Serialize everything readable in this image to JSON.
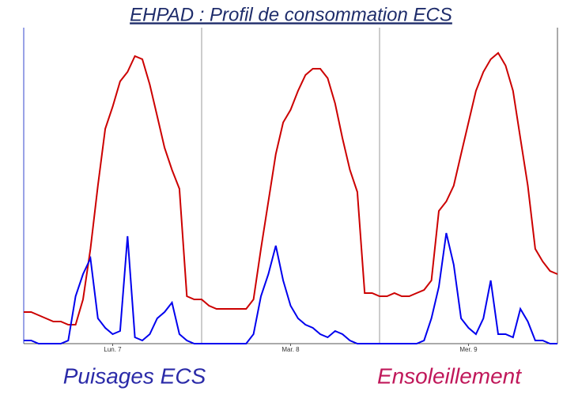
{
  "chart_data": {
    "type": "line",
    "title": "EHPAD : Profil de consommation ECS",
    "x": [
      0,
      1,
      2,
      3,
      4,
      5,
      6,
      7,
      8,
      9,
      10,
      11,
      12,
      13,
      14,
      15,
      16,
      17,
      18,
      19,
      20,
      21,
      22,
      23,
      24,
      25,
      26,
      27,
      28,
      29,
      30,
      31,
      32,
      33,
      34,
      35,
      36,
      37,
      38,
      39,
      40,
      41,
      42,
      43,
      44,
      45,
      46,
      47,
      48,
      49,
      50,
      51,
      52,
      53,
      54,
      55,
      56,
      57,
      58,
      59,
      60,
      61,
      62,
      63,
      64,
      65,
      66,
      67,
      68,
      69,
      70,
      71,
      72
    ],
    "xlim": [
      0,
      72
    ],
    "xticks": [
      {
        "value": 12,
        "label": "Lun. 7"
      },
      {
        "value": 36,
        "label": "Mar. 8"
      },
      {
        "value": 60,
        "label": "Mer. 9"
      }
    ],
    "xgrid": [
      24,
      48
    ],
    "ylim": [
      0,
      100
    ],
    "series": [
      {
        "name": "Ensoleillement",
        "color": "#cc0000",
        "values": [
          10,
          10,
          9,
          8,
          7,
          7,
          6,
          6,
          14,
          30,
          50,
          68,
          75,
          83,
          86,
          91,
          90,
          82,
          72,
          62,
          55,
          49,
          15,
          14,
          14,
          12,
          11,
          11,
          11,
          11,
          11,
          14,
          30,
          45,
          60,
          70,
          74,
          80,
          85,
          87,
          87,
          84,
          76,
          65,
          55,
          48,
          16,
          16,
          15,
          15,
          16,
          15,
          15,
          16,
          17,
          20,
          42,
          45,
          50,
          60,
          70,
          80,
          86,
          90,
          92,
          88,
          80,
          65,
          50,
          30,
          26,
          23,
          22
        ]
      },
      {
        "name": "Puisages ECS",
        "color": "#0000ee",
        "values": [
          1,
          1,
          0,
          0,
          0,
          0,
          1,
          15,
          22,
          27,
          8,
          5,
          3,
          4,
          34,
          2,
          1,
          3,
          8,
          10,
          13,
          3,
          1,
          0,
          0,
          0,
          0,
          0,
          0,
          0,
          0,
          3,
          15,
          22,
          31,
          20,
          12,
          8,
          6,
          5,
          3,
          2,
          4,
          3,
          1,
          0,
          0,
          0,
          0,
          0,
          0,
          0,
          0,
          0,
          1,
          8,
          18,
          35,
          25,
          8,
          5,
          3,
          8,
          20,
          3,
          3,
          2,
          11,
          7,
          1,
          1,
          0,
          0
        ]
      }
    ]
  }
}
